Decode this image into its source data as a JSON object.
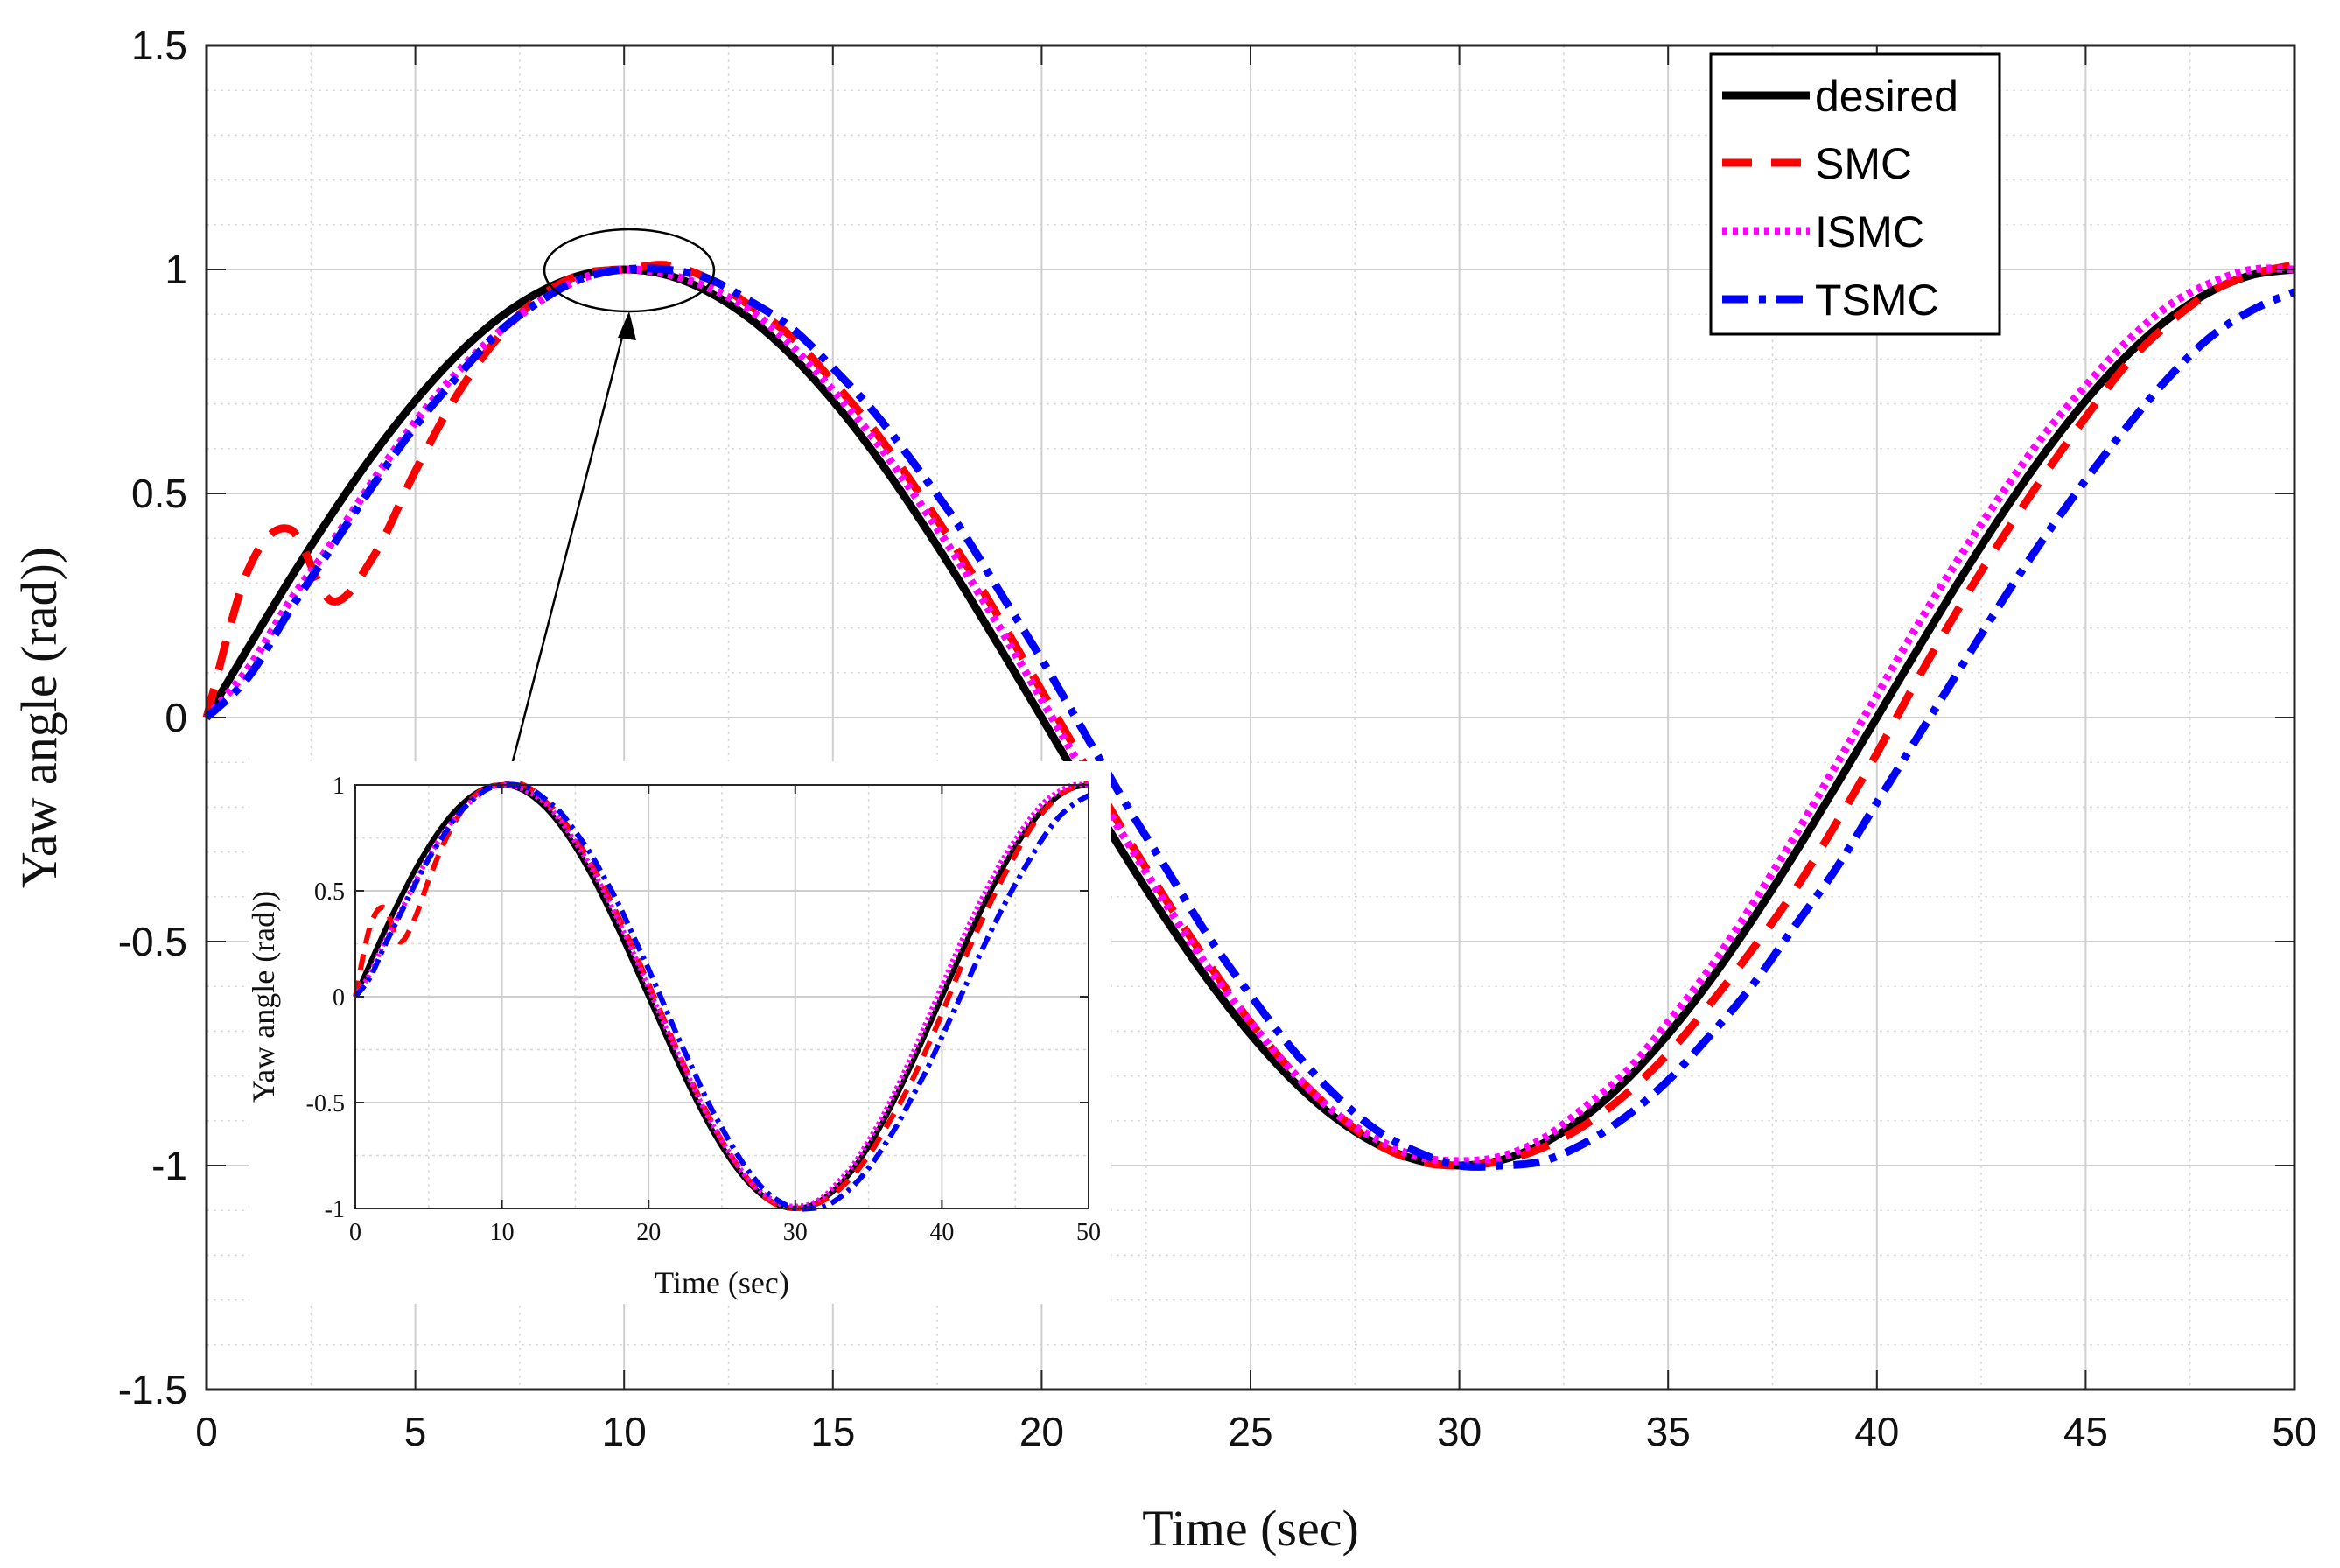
{
  "chart_data": {
    "type": "line",
    "main": {
      "xlabel": "Time (sec)",
      "ylabel": "Yaw angle (rad))",
      "xlim": [
        0,
        50
      ],
      "ylim": [
        -1.5,
        1.5
      ],
      "xticks": [
        "0",
        "5",
        "10",
        "15",
        "20",
        "25",
        "30",
        "35",
        "40",
        "45",
        "50"
      ],
      "yticks": [
        "1.5",
        "1",
        "0.5",
        "0",
        "-0.5",
        "-1",
        "-1.5"
      ],
      "grid": true,
      "legend_position": "top-right"
    },
    "inset": {
      "xlabel": "Time (sec)",
      "ylabel": "Yaw angle (rad))",
      "xlim": [
        0,
        50
      ],
      "ylim": [
        -1,
        1
      ],
      "xticks": [
        "0",
        "10",
        "20",
        "30",
        "40",
        "50"
      ],
      "yticks": [
        "1",
        "0.5",
        "0",
        "-0.5",
        "-1"
      ],
      "grid": true
    },
    "x": [
      0,
      1,
      2,
      3,
      4,
      5,
      6,
      7,
      8,
      9,
      10,
      11,
      12,
      13,
      14,
      15,
      16,
      17,
      18,
      19,
      20,
      21,
      22,
      23,
      24,
      25,
      26,
      27,
      28,
      29,
      30,
      31,
      32,
      33,
      34,
      35,
      36,
      37,
      38,
      39,
      40,
      41,
      42,
      43,
      44,
      45,
      46,
      47,
      48,
      49,
      50
    ],
    "series": [
      {
        "name": "desired",
        "color": "#000000",
        "dash": "solid",
        "values": [
          0,
          0.156,
          0.309,
          0.454,
          0.588,
          0.707,
          0.809,
          0.891,
          0.951,
          0.988,
          1.0,
          0.988,
          0.951,
          0.891,
          0.809,
          0.707,
          0.588,
          0.454,
          0.309,
          0.156,
          0,
          -0.156,
          -0.309,
          -0.454,
          -0.588,
          -0.707,
          -0.809,
          -0.891,
          -0.951,
          -0.988,
          -1.0,
          -0.988,
          -0.951,
          -0.891,
          -0.809,
          -0.707,
          -0.588,
          -0.454,
          -0.309,
          -0.156,
          0,
          0.156,
          0.309,
          0.454,
          0.588,
          0.707,
          0.809,
          0.891,
          0.951,
          0.988,
          1.0
        ]
      },
      {
        "name": "SMC",
        "color": "#ff0000",
        "dash": "dashed",
        "values": [
          0,
          0.33,
          0.42,
          0.26,
          0.36,
          0.55,
          0.72,
          0.85,
          0.94,
          0.99,
          1.0,
          1.01,
          0.98,
          0.92,
          0.85,
          0.75,
          0.64,
          0.51,
          0.37,
          0.22,
          0.06,
          -0.1,
          -0.26,
          -0.41,
          -0.55,
          -0.68,
          -0.79,
          -0.88,
          -0.95,
          -0.99,
          -1.0,
          -0.99,
          -0.96,
          -0.91,
          -0.84,
          -0.75,
          -0.64,
          -0.52,
          -0.39,
          -0.24,
          -0.08,
          0.09,
          0.25,
          0.4,
          0.54,
          0.67,
          0.79,
          0.88,
          0.95,
          0.99,
          1.01
        ]
      },
      {
        "name": "ISMC",
        "color": "#ff00ff",
        "dash": "dotted",
        "values": [
          0,
          0.11,
          0.26,
          0.39,
          0.53,
          0.66,
          0.77,
          0.86,
          0.93,
          0.98,
          1.0,
          0.99,
          0.96,
          0.91,
          0.83,
          0.73,
          0.62,
          0.49,
          0.35,
          0.2,
          0.04,
          -0.12,
          -0.27,
          -0.42,
          -0.56,
          -0.68,
          -0.79,
          -0.88,
          -0.94,
          -0.98,
          -0.99,
          -0.98,
          -0.94,
          -0.87,
          -0.79,
          -0.68,
          -0.56,
          -0.42,
          -0.27,
          -0.11,
          0.05,
          0.21,
          0.36,
          0.5,
          0.63,
          0.74,
          0.84,
          0.92,
          0.97,
          1.0,
          1.0
        ]
      },
      {
        "name": "TSMC",
        "color": "#0000ff",
        "dash": "dashdot",
        "values": [
          0,
          0.09,
          0.24,
          0.38,
          0.52,
          0.65,
          0.76,
          0.86,
          0.93,
          0.98,
          1.0,
          1.0,
          0.98,
          0.93,
          0.87,
          0.78,
          0.68,
          0.56,
          0.43,
          0.28,
          0.13,
          -0.03,
          -0.19,
          -0.34,
          -0.49,
          -0.62,
          -0.74,
          -0.84,
          -0.92,
          -0.97,
          -1.0,
          -1.0,
          -0.99,
          -0.95,
          -0.89,
          -0.81,
          -0.71,
          -0.6,
          -0.47,
          -0.34,
          -0.19,
          -0.04,
          0.11,
          0.26,
          0.4,
          0.53,
          0.65,
          0.76,
          0.85,
          0.91,
          0.95
        ]
      }
    ]
  }
}
